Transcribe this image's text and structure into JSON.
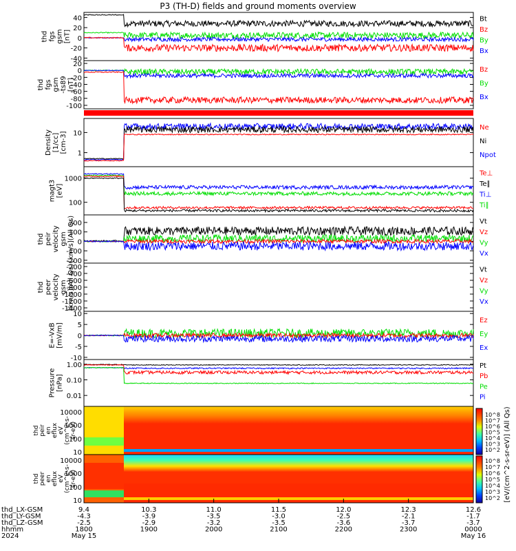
{
  "title": "P3 (TH-D) fields and ground moments overview",
  "colors": {
    "black": "#000000",
    "red": "#ff0000",
    "green": "#00dd00",
    "blue": "#0000ff"
  },
  "chart_data": {
    "type": "line",
    "panels": [
      {
        "ylabel": [
          "thd",
          "fgs",
          "gsm",
          "[nT]"
        ],
        "yticks": [
          "40",
          "20",
          "0",
          "-20",
          "-40"
        ],
        "ylim": [
          -45,
          50
        ],
        "legend": [
          "Bt",
          "Bz",
          "By",
          "Bx"
        ],
        "legend_colors": [
          "black",
          "red",
          "green",
          "blue"
        ],
        "series": [
          {
            "legend": "Bt",
            "color": "black",
            "pre": 45,
            "post": 28,
            "noise": 6
          },
          {
            "legend": "By",
            "color": "green",
            "pre": 10,
            "post": 5,
            "noise": 6
          },
          {
            "legend": "Bx",
            "color": "blue",
            "pre": 0,
            "post": -3,
            "noise": 4
          },
          {
            "legend": "Bz",
            "color": "red",
            "pre": 0,
            "post": -20,
            "noise": 7
          }
        ]
      },
      {
        "ylabel": [
          "thd",
          "fgs",
          "gsm",
          "-ts89",
          "[nT]"
        ],
        "yticks": [
          "20",
          "0",
          "-20",
          "-40",
          "-60",
          "-80",
          "-100"
        ],
        "ylim": [
          -110,
          28
        ],
        "legend": [
          "Bz",
          "By",
          "Bx"
        ],
        "legend_colors": [
          "red",
          "green",
          "blue"
        ],
        "series": [
          {
            "legend": "By",
            "color": "green",
            "pre": 0,
            "post": -4,
            "noise": 8
          },
          {
            "legend": "Bx",
            "color": "blue",
            "pre": 0,
            "post": -15,
            "noise": 6
          },
          {
            "legend": "Bz",
            "color": "red",
            "pre": -5,
            "post": -85,
            "noise": 9
          }
        ]
      },
      {
        "ylabel": [
          "Density",
          "[1/cc]",
          "[cm-3]"
        ],
        "yticks": [
          "10",
          "1"
        ],
        "ylim": [
          0.2,
          50
        ],
        "log": true,
        "legend": [
          "Ne",
          "Ni",
          "Npot"
        ],
        "legend_colors": [
          "red",
          "black",
          "blue"
        ],
        "series": [
          {
            "legend": "Npot",
            "color": "blue",
            "pre": 0.45,
            "post": 20,
            "noise": 0.3
          },
          {
            "legend": "Ni",
            "color": "black",
            "pre": 0.5,
            "post": 14,
            "noise": 0.3
          },
          {
            "legend": "Ne",
            "color": "red",
            "pre": 0.4,
            "post": 8,
            "noise": 0.05
          }
        ]
      },
      {
        "ylabel": [
          "magt3",
          "[eV]"
        ],
        "yticks": [
          "1000",
          "100"
        ],
        "ylim": [
          30,
          3000
        ],
        "log": true,
        "legend": [
          "Te⊥",
          "Te∥",
          "Ti⊥",
          "Ti∥"
        ],
        "legend_colors": [
          "red",
          "black",
          "blue",
          "green"
        ],
        "series": [
          {
            "legend": "Ti⊥",
            "color": "blue",
            "pre": 1500,
            "post": 420,
            "noise": 0.15
          },
          {
            "legend": "Ti∥",
            "color": "green",
            "pre": 1300,
            "post": 230,
            "noise": 0.15
          },
          {
            "legend": "Te⊥",
            "color": "red",
            "pre": 1200,
            "post": 60,
            "noise": 0.1
          },
          {
            "legend": "Te∥",
            "color": "black",
            "pre": 1000,
            "post": 45,
            "noise": 0.1
          }
        ]
      },
      {
        "ylabel": [
          "thd",
          "peir",
          "velocity",
          "gsm",
          "[km/s](All Qs)"
        ],
        "yticks": [
          "200",
          "100",
          "0",
          "-100",
          "-200"
        ],
        "ylim": [
          -230,
          280
        ],
        "legend": [
          "Vt",
          "Vz",
          "Vy",
          "Vx"
        ],
        "legend_colors": [
          "black",
          "red",
          "green",
          "blue"
        ],
        "series": [
          {
            "legend": "Vt",
            "color": "black",
            "pre": 5,
            "post": 110,
            "noise": 45
          },
          {
            "legend": "Vy",
            "color": "green",
            "pre": 0,
            "post": 30,
            "noise": 40
          },
          {
            "legend": "Vz",
            "color": "red",
            "pre": 0,
            "post": 0,
            "noise": 20
          },
          {
            "legend": "Vx",
            "color": "blue",
            "pre": 0,
            "post": -50,
            "noise": 45
          }
        ]
      },
      {
        "ylabel": [
          "thd",
          "peer",
          "velocity",
          "gsm",
          "[km/s](All Qs)"
        ],
        "yticks": [
          "-200",
          "-400",
          "-600",
          "-800",
          "-1000",
          "-1200",
          "-1400"
        ],
        "ylim": [
          -1500,
          -100
        ],
        "legend": [
          "Vt",
          "Vz",
          "Vy",
          "Vx"
        ],
        "legend_colors": [
          "black",
          "red",
          "green",
          "blue"
        ],
        "series": []
      },
      {
        "ylabel": [
          "E=-VxB",
          "[mV/m]"
        ],
        "yticks": [
          "10",
          "5",
          "0",
          "-5",
          "-10"
        ],
        "ylim": [
          -11,
          11
        ],
        "legend": [
          "Ez",
          "Ey",
          "Ex"
        ],
        "legend_colors": [
          "red",
          "green",
          "blue"
        ],
        "series": [
          {
            "legend": "Ey",
            "color": "green",
            "pre": 0,
            "post": 1,
            "noise": 2
          },
          {
            "legend": "Ez",
            "color": "red",
            "pre": 0,
            "post": 0,
            "noise": 1
          },
          {
            "legend": "Ex",
            "color": "blue",
            "pre": 0,
            "post": -1.5,
            "noise": 1.5
          }
        ]
      },
      {
        "ylabel": [
          "Pressure",
          "[nPa]"
        ],
        "yticks": [
          "1.00",
          "0.10",
          "0.01"
        ],
        "ylim": [
          0.002,
          2
        ],
        "log": true,
        "legend": [
          "Pt",
          "Pb",
          "Pe",
          "Pi"
        ],
        "legend_colors": [
          "black",
          "red",
          "green",
          "blue"
        ],
        "series": [
          {
            "legend": "Pt",
            "color": "black",
            "pre": 0.95,
            "post": 0.9,
            "noise": 0.05
          },
          {
            "legend": "Pi",
            "color": "blue",
            "pre": 0.6,
            "post": 0.55,
            "noise": 0.08
          },
          {
            "legend": "Pb",
            "color": "red",
            "pre": 0.9,
            "post": 0.3,
            "noise": 0.2
          },
          {
            "legend": "Pe",
            "color": "green",
            "pre": 0.6,
            "post": 0.06,
            "noise": 0.05
          }
        ]
      }
    ],
    "spectrograms": [
      {
        "ylabel": [
          "thd",
          "peir",
          "en",
          "eflux",
          "eV",
          "(cm^2-s-",
          "sr-eV)"
        ],
        "yticks": [
          "10000",
          "1000",
          "100",
          "10"
        ]
      },
      {
        "ylabel": [
          "thd",
          "peer",
          "en",
          "eflux",
          "eV",
          "(cm^2-s-",
          "sr-eV)"
        ],
        "yticks": [
          "10000",
          "1000",
          "100",
          "10"
        ]
      }
    ],
    "colorbar": {
      "label": "[eV/(cm^2-s-sr-eV)] (All Qs)",
      "upper_ticks": [
        "10^8",
        "10^7",
        "10^6",
        "10^5",
        "10^4",
        "10^3",
        "10^2"
      ],
      "lower_ticks": [
        "10^8",
        "10^7",
        "10^6",
        "10^5",
        "10^4",
        "10^3",
        "10^2"
      ]
    },
    "xaxis": {
      "rows": [
        {
          "label": "thd_LX-GSM",
          "values": [
            "9.4",
            "10.3",
            "11.0",
            "11.5",
            "12.0",
            "12.3",
            "12.6"
          ]
        },
        {
          "label": "thd_LY-GSM",
          "values": [
            "-4.3",
            "-3.9",
            "-3.5",
            "-3.0",
            "-2.5",
            "-2.1",
            "-1.7"
          ]
        },
        {
          "label": "thd_LZ-GSM",
          "values": [
            "-2.5",
            "-2.9",
            "-3.2",
            "-3.5",
            "-3.6",
            "-3.7",
            "-3.7"
          ]
        },
        {
          "label": "hhmm",
          "values": [
            "1800",
            "1900",
            "2000",
            "2100",
            "2200",
            "2300",
            "0000"
          ]
        },
        {
          "label": "2024",
          "values": [
            "May 15",
            "",
            "",
            "",
            "",
            "",
            "May 16"
          ]
        }
      ]
    }
  }
}
